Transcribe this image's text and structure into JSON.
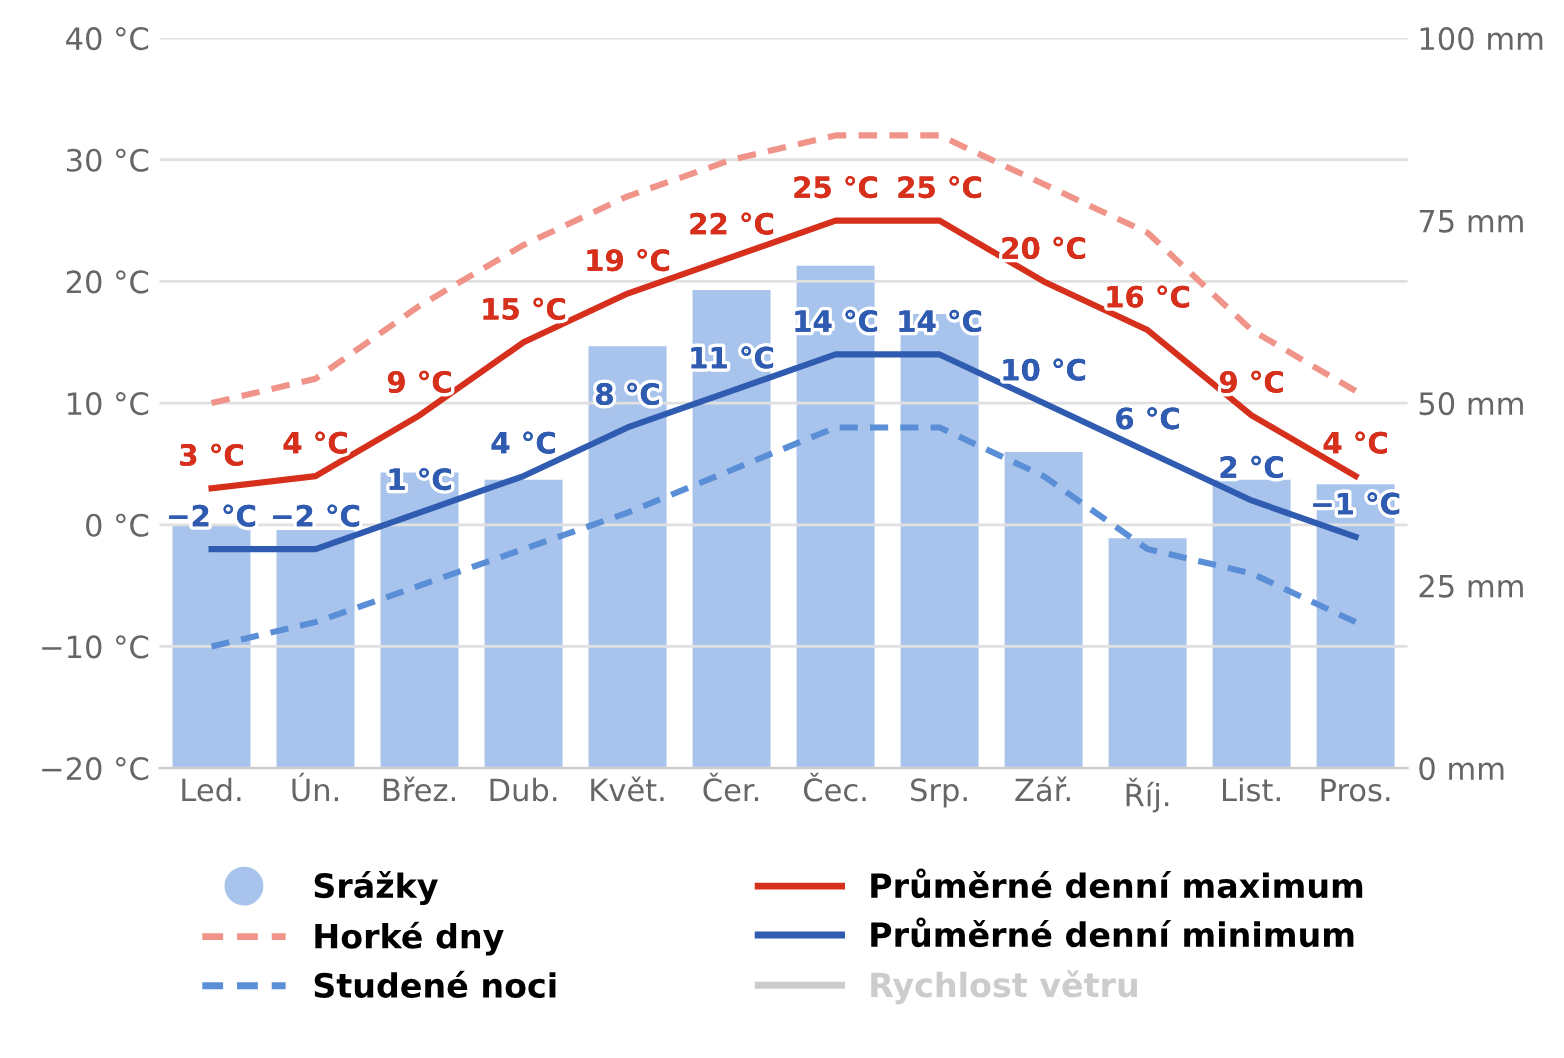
{
  "chart_data": {
    "type": "line",
    "categories": [
      "Led.",
      "Ún.",
      "Břez.",
      "Dub.",
      "Květ.",
      "Čer.",
      "Čec.",
      "Srp.",
      "Zář.",
      "Říj.",
      "List.",
      "Pros."
    ],
    "ylim": [
      -20,
      40
    ],
    "yticks": [
      {
        "value": -20,
        "label": "−20 °C"
      },
      {
        "value": -10,
        "label": "−10 °C"
      },
      {
        "value": 0,
        "label": "0 °C"
      },
      {
        "value": 10,
        "label": "10 °C"
      },
      {
        "value": 20,
        "label": "20 °C"
      },
      {
        "value": 30,
        "label": "30 °C"
      },
      {
        "value": 40,
        "label": "40 °C"
      }
    ],
    "y2lim": [
      0,
      100
    ],
    "y2ticks": [
      {
        "value": 0,
        "label": "0 mm"
      },
      {
        "value": 25,
        "label": "25 mm"
      },
      {
        "value": 50,
        "label": "50 mm"
      },
      {
        "value": 75,
        "label": "75 mm"
      },
      {
        "value": 100,
        "label": "100 mm"
      }
    ],
    "grid": "y",
    "legend": "bottom",
    "line_style": "solid",
    "series": [
      {
        "name": "Srážky",
        "type": "bar",
        "axis": "y2",
        "color": "#a9c4ec",
        "values": [
          33.4,
          32.6,
          40.5,
          39.5,
          57.8,
          65.5,
          68.8,
          62.2,
          43.3,
          31.5,
          39.5,
          38.9
        ]
      },
      {
        "name": "Horké dny",
        "line_style": "dashed",
        "color": "#f0948a",
        "values": [
          10,
          12,
          18,
          23,
          27,
          30,
          32,
          32,
          28,
          24,
          16,
          11
        ]
      },
      {
        "name": "Studené noci",
        "line_style": "dashed",
        "color": "#5a8ed6",
        "values": [
          -10,
          -8,
          -5,
          -2,
          1,
          4.5,
          8,
          8,
          4,
          -2,
          -4,
          -8
        ]
      },
      {
        "name": "Průměrné denní maximum",
        "color": "#d62f1c",
        "values": [
          3,
          4,
          9,
          15,
          19,
          22,
          25,
          25,
          20,
          16,
          9,
          4
        ],
        "value_labels": [
          "3 °C",
          "4 °C",
          "9 °C",
          "15 °C",
          "19 °C",
          "22 °C",
          "25 °C",
          "25 °C",
          "20 °C",
          "16 °C",
          "9 °C",
          "4 °C"
        ]
      },
      {
        "name": "Průměrné denní minimum",
        "color": "#2f5bb0",
        "values": [
          -2,
          -2,
          1,
          4,
          8,
          11,
          14,
          14,
          10,
          6,
          2,
          -1
        ],
        "value_labels": [
          "−2 °C",
          "−2 °C",
          "1 °C",
          "4 °C",
          "8 °C",
          "11 °C",
          "14 °C",
          "14 °C",
          "10 °C",
          "6 °C",
          "2 °C",
          "−1 °C"
        ]
      },
      {
        "name": "Rychlost větru",
        "color": "#cccccc",
        "values": [
          null,
          null,
          null,
          null,
          null,
          null,
          null,
          null,
          null,
          null,
          null,
          null
        ]
      }
    ]
  }
}
